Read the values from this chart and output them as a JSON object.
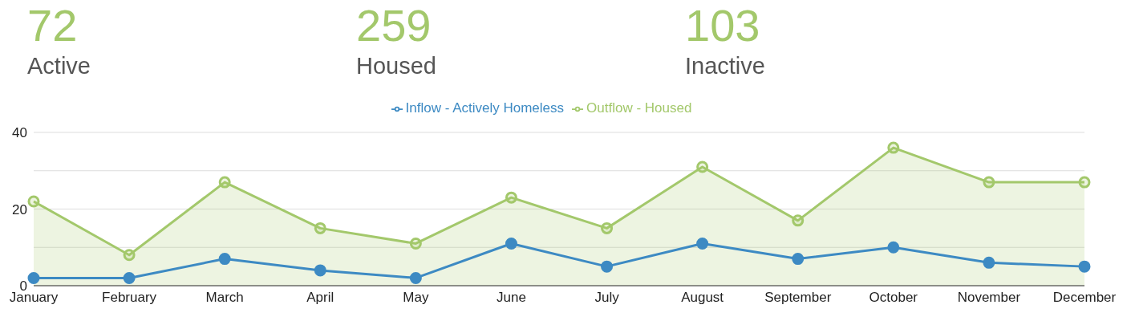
{
  "chart_data": [
    {
      "type": "other",
      "annotations": [
        "72",
        "Active",
        "259",
        "Housed",
        "103",
        "Inactive"
      ]
    },
    {
      "type": "line",
      "categories": [
        "January",
        "February",
        "March",
        "April",
        "May",
        "June",
        "July",
        "August",
        "September",
        "October",
        "November",
        "December"
      ],
      "series": [
        {
          "name": "Outflow - Housed",
          "type": "area",
          "color": "#a3c86b",
          "values": [
            22,
            8,
            27,
            15,
            11,
            23,
            15,
            31,
            17,
            36,
            27,
            27
          ]
        },
        {
          "name": "Inflow - Actively Homeless",
          "type": "line",
          "color": "#3d8ac3",
          "values": [
            2,
            2,
            7,
            4,
            2,
            11,
            5,
            11,
            7,
            10,
            6,
            5
          ]
        }
      ],
      "ylim": [
        0,
        40
      ],
      "yticks": [
        0,
        {
          "value": 10,
          "label": null
        },
        20,
        {
          "value": 30,
          "label": null
        },
        40
      ],
      "grid": "y",
      "legend": "top",
      "marker": "circle",
      "line_style": "solid"
    }
  ]
}
